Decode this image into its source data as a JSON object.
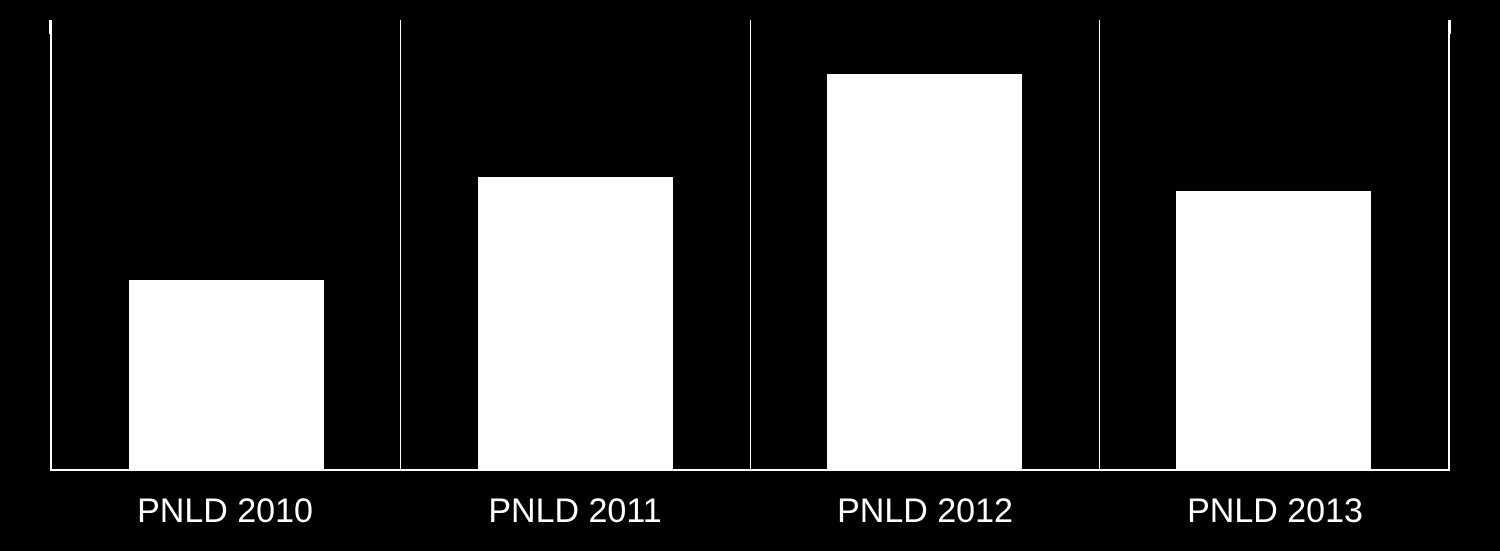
{
  "chart": {
    "type": "bar",
    "background_color": "#000000",
    "bar_color": "#ffffff",
    "axis_color": "#ffffff",
    "label_color": "#ffffff",
    "label_fontsize": 34,
    "bar_width_ratio": 0.56,
    "y_max": 100,
    "categories": [
      "PNLD 2010",
      "PNLD 2011",
      "PNLD 2012",
      "PNLD  2013"
    ],
    "values": [
      42,
      65,
      88,
      62
    ],
    "tick_height": 14
  }
}
